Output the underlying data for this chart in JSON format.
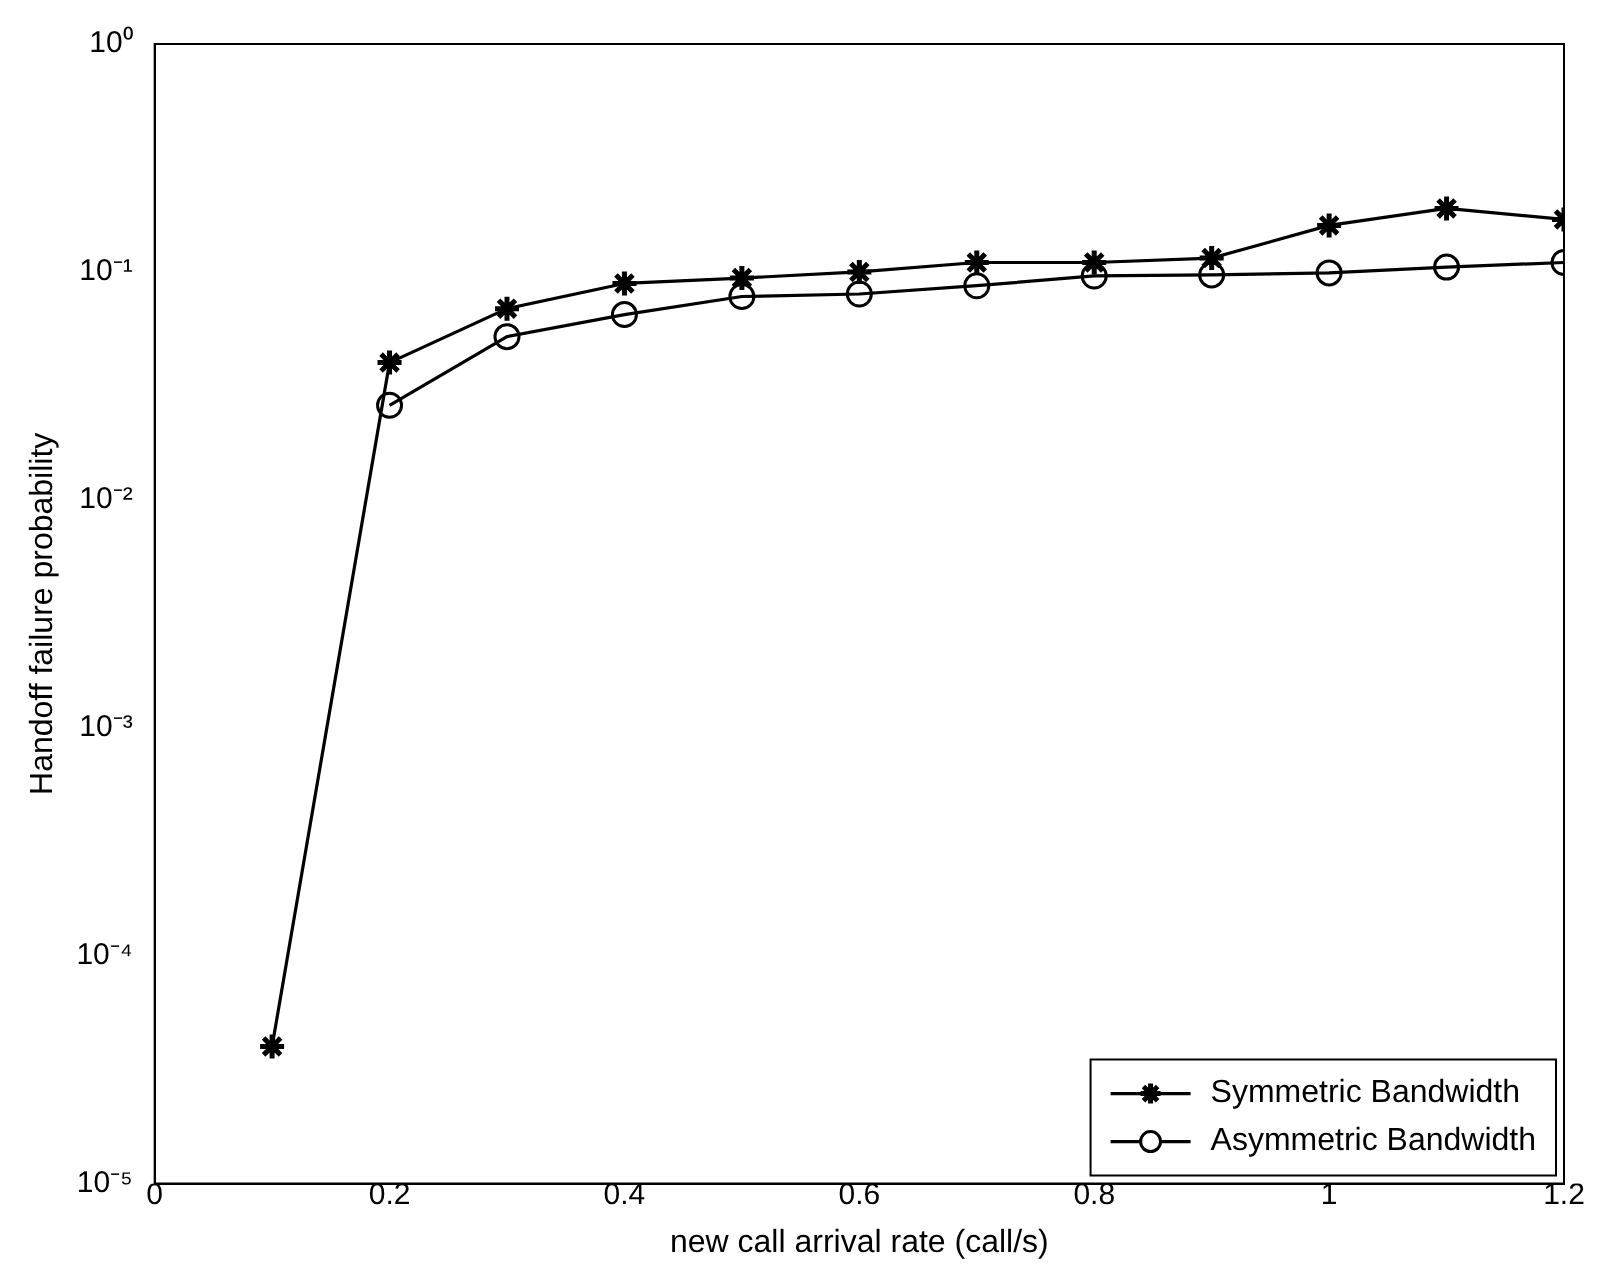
{
  "chart_data": {
    "type": "line",
    "xlabel": "new call arrival rate (call/s)",
    "ylabel": "Handoff failure probability",
    "x": [
      0.1,
      0.2,
      0.3,
      0.4,
      0.5,
      0.6,
      0.7,
      0.8,
      0.9,
      1.0,
      1.1,
      1.2
    ],
    "series": [
      {
        "name": "Symmetric Bandwidth",
        "color": "#000000",
        "marker": "cross",
        "values": [
          4e-05,
          0.04,
          0.069,
          0.089,
          0.094,
          0.1,
          0.11,
          0.11,
          0.115,
          0.16,
          0.19,
          0.17
        ]
      },
      {
        "name": "Asymmetric Bandwidth",
        "color": "#000000",
        "marker": "circle",
        "values": [
          null,
          0.026,
          0.052,
          0.065,
          0.078,
          0.08,
          0.087,
          0.096,
          0.097,
          0.099,
          0.105,
          0.11
        ]
      }
    ],
    "log": "y",
    "xlim": [
      0,
      1.2
    ],
    "xticks": [
      0,
      0.2,
      0.4,
      0.6,
      0.8,
      1,
      1.2
    ],
    "ylim": [
      1e-05,
      1
    ],
    "yticks": [
      {
        "value": 1e-05,
        "label": "10⁻⁵"
      },
      {
        "value": 0.0001,
        "label": "10⁻⁴"
      },
      {
        "value": 0.001,
        "label": "10⁻³"
      },
      {
        "value": 0.01,
        "label": "10⁻²"
      },
      {
        "value": 0.1,
        "label": "10⁻¹"
      },
      {
        "value": 1,
        "label": "10⁰"
      }
    ],
    "grid": false,
    "legend": "bottom right",
    "line_style": "solid"
  }
}
